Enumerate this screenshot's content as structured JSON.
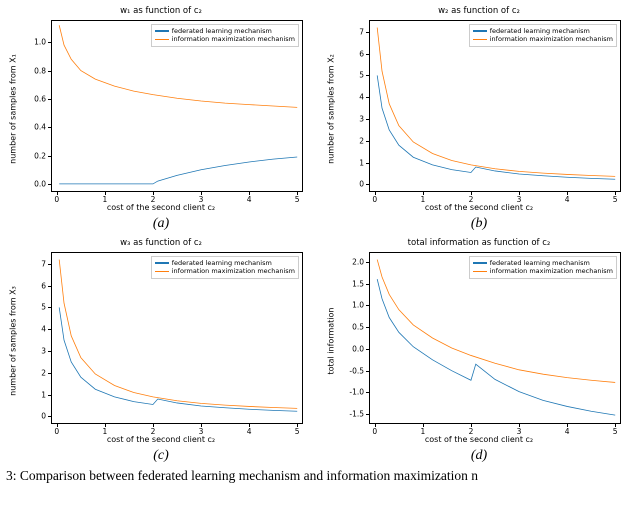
{
  "caption": "3: Comparison between federated learning mechanism and information maximization n",
  "legend": {
    "series1": "federated learning mechanism",
    "series2": "information maximization mechanism",
    "color1": "#1f77b4",
    "color2": "#ff7f0e"
  },
  "common": {
    "xlabel": "cost of the second client c₂",
    "xticks": [
      0,
      1,
      2,
      3,
      4,
      5
    ],
    "xlim": [
      -0.1,
      5.1
    ]
  },
  "panels": {
    "a": {
      "title": "w₁ as function of c₂",
      "ylabel": "number of samples from X₁",
      "sublabel": "(a)",
      "ylim": [
        -0.05,
        1.15
      ],
      "yticks": [
        0.0,
        0.2,
        0.4,
        0.6,
        0.8,
        1.0
      ],
      "series1": [
        [
          0.05,
          0.0
        ],
        [
          0.5,
          0.0
        ],
        [
          1.0,
          0.0
        ],
        [
          1.5,
          0.0
        ],
        [
          2.0,
          0.0
        ],
        [
          2.1,
          0.02
        ],
        [
          2.5,
          0.06
        ],
        [
          3.0,
          0.1
        ],
        [
          3.5,
          0.13
        ],
        [
          4.0,
          0.155
        ],
        [
          4.5,
          0.175
        ],
        [
          5.0,
          0.19
        ]
      ],
      "series2": [
        [
          0.05,
          1.12
        ],
        [
          0.15,
          0.98
        ],
        [
          0.3,
          0.88
        ],
        [
          0.5,
          0.8
        ],
        [
          0.8,
          0.74
        ],
        [
          1.2,
          0.69
        ],
        [
          1.6,
          0.655
        ],
        [
          2.0,
          0.63
        ],
        [
          2.5,
          0.605
        ],
        [
          3.0,
          0.585
        ],
        [
          3.5,
          0.57
        ],
        [
          4.0,
          0.56
        ],
        [
          4.5,
          0.55
        ],
        [
          5.0,
          0.54
        ]
      ]
    },
    "b": {
      "title": "w₂ as function of c₂",
      "ylabel": "number of samples from X₂",
      "sublabel": "(b)",
      "ylim": [
        -0.3,
        7.5
      ],
      "yticks": [
        0,
        1,
        2,
        3,
        4,
        5,
        6,
        7
      ],
      "series1": [
        [
          0.05,
          5.0
        ],
        [
          0.15,
          3.5
        ],
        [
          0.3,
          2.5
        ],
        [
          0.5,
          1.8
        ],
        [
          0.8,
          1.25
        ],
        [
          1.2,
          0.9
        ],
        [
          1.6,
          0.68
        ],
        [
          2.0,
          0.55
        ],
        [
          2.1,
          0.8
        ],
        [
          2.5,
          0.62
        ],
        [
          3.0,
          0.48
        ],
        [
          3.5,
          0.4
        ],
        [
          4.0,
          0.33
        ],
        [
          4.5,
          0.28
        ],
        [
          5.0,
          0.24
        ]
      ],
      "series2": [
        [
          0.05,
          7.2
        ],
        [
          0.15,
          5.2
        ],
        [
          0.3,
          3.7
        ],
        [
          0.5,
          2.7
        ],
        [
          0.8,
          1.95
        ],
        [
          1.2,
          1.42
        ],
        [
          1.6,
          1.1
        ],
        [
          2.0,
          0.9
        ],
        [
          2.5,
          0.72
        ],
        [
          3.0,
          0.6
        ],
        [
          3.5,
          0.52
        ],
        [
          4.0,
          0.46
        ],
        [
          4.5,
          0.41
        ],
        [
          5.0,
          0.37
        ]
      ]
    },
    "c": {
      "title": "w₃ as function of c₂",
      "ylabel": "number of samples from X₃",
      "sublabel": "(c)",
      "ylim": [
        -0.3,
        7.5
      ],
      "yticks": [
        0,
        1,
        2,
        3,
        4,
        5,
        6,
        7
      ],
      "series1": [
        [
          0.05,
          5.0
        ],
        [
          0.15,
          3.5
        ],
        [
          0.3,
          2.5
        ],
        [
          0.5,
          1.8
        ],
        [
          0.8,
          1.25
        ],
        [
          1.2,
          0.9
        ],
        [
          1.6,
          0.68
        ],
        [
          2.0,
          0.55
        ],
        [
          2.1,
          0.8
        ],
        [
          2.5,
          0.62
        ],
        [
          3.0,
          0.48
        ],
        [
          3.5,
          0.4
        ],
        [
          4.0,
          0.33
        ],
        [
          4.5,
          0.28
        ],
        [
          5.0,
          0.24
        ]
      ],
      "series2": [
        [
          0.05,
          7.2
        ],
        [
          0.15,
          5.2
        ],
        [
          0.3,
          3.7
        ],
        [
          0.5,
          2.7
        ],
        [
          0.8,
          1.95
        ],
        [
          1.2,
          1.42
        ],
        [
          1.6,
          1.1
        ],
        [
          2.0,
          0.9
        ],
        [
          2.5,
          0.72
        ],
        [
          3.0,
          0.6
        ],
        [
          3.5,
          0.52
        ],
        [
          4.0,
          0.46
        ],
        [
          4.5,
          0.41
        ],
        [
          5.0,
          0.37
        ]
      ]
    },
    "d": {
      "title": "total information as function of c₂",
      "ylabel": "total information",
      "sublabel": "(d)",
      "ylim": [
        -1.7,
        2.2
      ],
      "yticks": [
        -1.5,
        -1.0,
        -0.5,
        0.0,
        0.5,
        1.0,
        1.5,
        2.0
      ],
      "series1": [
        [
          0.05,
          1.6
        ],
        [
          0.15,
          1.15
        ],
        [
          0.3,
          0.72
        ],
        [
          0.5,
          0.38
        ],
        [
          0.8,
          0.05
        ],
        [
          1.2,
          -0.25
        ],
        [
          1.6,
          -0.5
        ],
        [
          2.0,
          -0.72
        ],
        [
          2.1,
          -0.35
        ],
        [
          2.5,
          -0.7
        ],
        [
          3.0,
          -0.98
        ],
        [
          3.5,
          -1.18
        ],
        [
          4.0,
          -1.32
        ],
        [
          4.5,
          -1.43
        ],
        [
          5.0,
          -1.52
        ]
      ],
      "series2": [
        [
          0.05,
          2.05
        ],
        [
          0.15,
          1.65
        ],
        [
          0.3,
          1.25
        ],
        [
          0.5,
          0.9
        ],
        [
          0.8,
          0.55
        ],
        [
          1.2,
          0.25
        ],
        [
          1.6,
          0.02
        ],
        [
          2.0,
          -0.15
        ],
        [
          2.5,
          -0.33
        ],
        [
          3.0,
          -0.48
        ],
        [
          3.5,
          -0.58
        ],
        [
          4.0,
          -0.66
        ],
        [
          4.5,
          -0.72
        ],
        [
          5.0,
          -0.77
        ]
      ]
    }
  }
}
